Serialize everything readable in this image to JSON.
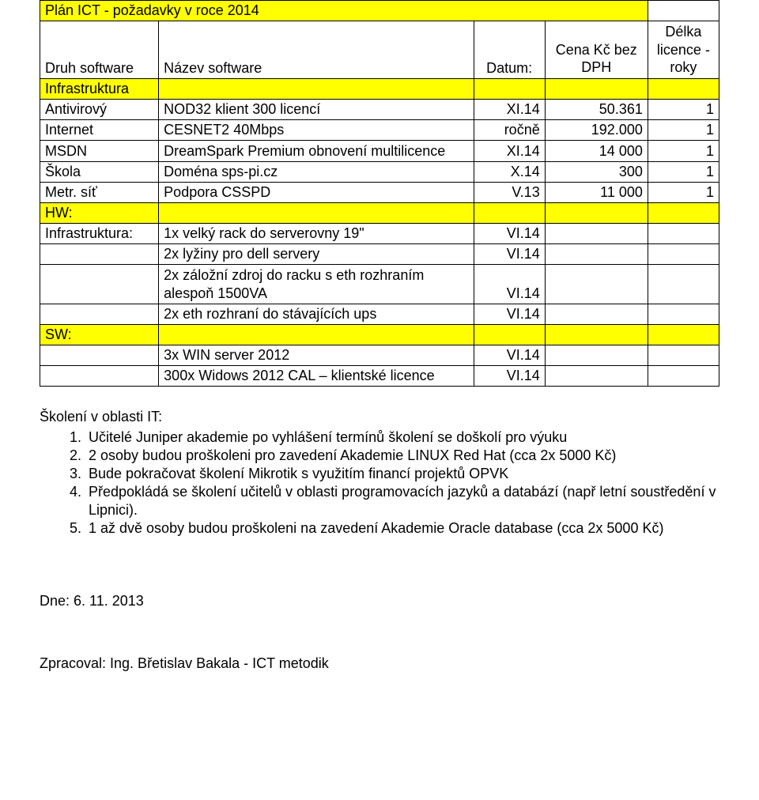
{
  "colors": {
    "highlight": "#ffff00",
    "border": "#000000",
    "text": "#000000",
    "background": "#ffffff"
  },
  "table": {
    "title": "Plán ICT -  požadavky v roce 2014",
    "headers": {
      "druh": "Druh software",
      "nazev": "Název software",
      "datum": "Datum:",
      "cena": "Cena Kč bez DPH",
      "delka": "Délka licence - roky"
    },
    "sections": {
      "infrastruktura": "Infrastruktura",
      "hw": "HW:",
      "sw": "SW:"
    },
    "rows": [
      {
        "druh": "Antivirový",
        "nazev": "NOD32 klient 300 licencí",
        "datum": "XI.14",
        "cena": "50.361",
        "delka": "1"
      },
      {
        "druh": "Internet",
        "nazev": "CESNET2 40Mbps",
        "datum": "ročně",
        "cena": "192.000",
        "delka": "1"
      },
      {
        "druh": "MSDN",
        "nazev": "DreamSpark Premium obnovení multilicence",
        "datum": "XI.14",
        "cena": "14 000",
        "delka": "1"
      },
      {
        "druh": "Škola",
        "nazev": "Doména sps-pi.cz",
        "datum": "X.14",
        "cena": "300",
        "delka": "1"
      },
      {
        "druh": "Metr. síť",
        "nazev": "Podpora CSSPD",
        "datum": "V.13",
        "cena": "11 000",
        "delka": "1"
      }
    ],
    "infra_row": {
      "druh": "Infrastruktura:",
      "nazev": "1x velký rack do serverovny 19\"",
      "datum": "VI.14"
    },
    "hw_rows": [
      {
        "nazev": "2x lyžiny pro dell servery",
        "datum": "VI.14"
      },
      {
        "nazev": "2x záložní zdroj do racku s eth rozhraním alespoň 1500VA",
        "datum": "VI.14"
      },
      {
        "nazev": "2x eth rozhraní do stávajících ups",
        "datum": "VI.14"
      }
    ],
    "sw_rows": [
      {
        "nazev": "3x WIN server 2012",
        "datum": "VI.14"
      },
      {
        "nazev": "300x Widows 2012 CAL – klientské licence",
        "datum": "VI.14"
      }
    ]
  },
  "training": {
    "title": "Školení v oblasti IT:",
    "items": [
      "Učitelé Juniper akademie po vyhlášení termínů školení se doškolí pro výuku",
      "2 osoby budou proškoleni pro zavedení Akademie LINUX Red Hat (cca 2x 5000 Kč)",
      "Bude pokračovat školení Mikrotik s využitím financí projektů OPVK",
      "Předpokládá se školení učitelů v oblasti programovacích jazyků a databází (např letní soustředění v Lipnici).",
      "1 až dvě osoby budou proškoleni na zavedení Akademie Oracle database (cca 2x 5000 Kč)"
    ]
  },
  "footer": {
    "date": "Dne: 6. 11. 2013",
    "author": "Zpracoval: Ing. Břetislav Bakala - ICT metodik"
  }
}
